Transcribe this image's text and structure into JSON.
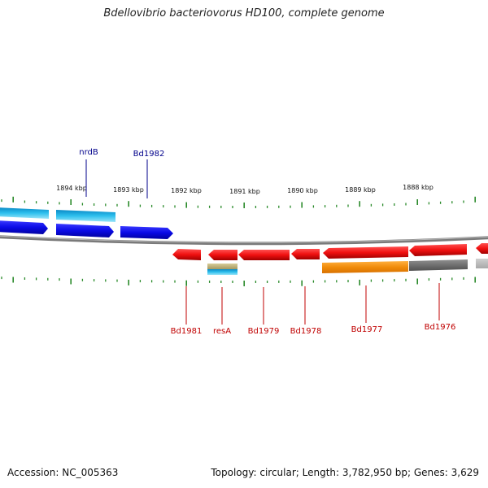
{
  "title": "Bdellovibrio bacteriovorus HD100, complete genome",
  "footer": {
    "accession": "Accession: NC_005363",
    "topology": "Topology: circular; Length: 3,782,950 bp; Genes: 3,629"
  },
  "ruler": {
    "labels": [
      "1894 kbp",
      "1893 kbp",
      "1892 kbp",
      "1891 kbp",
      "1890 kbp",
      "1889 kbp",
      "1888 kbp"
    ]
  },
  "colors": {
    "forward_gene": "#0a0ae6",
    "forward_cds": "#1eaee6",
    "reverse_gene": "#f01010",
    "reverse_cds_orange": "#f08c0a",
    "reverse_cds_gray": "#707070",
    "backbone": "#808080",
    "tick": "#2a8a2a",
    "forward_label": "#00008b",
    "reverse_label": "#c00000"
  },
  "labels": {
    "forward": [
      "nrdB",
      "Bd1982"
    ],
    "reverse": [
      "Bd1981",
      "resA",
      "Bd1979",
      "Bd1978",
      "Bd1977",
      "Bd1976"
    ]
  }
}
